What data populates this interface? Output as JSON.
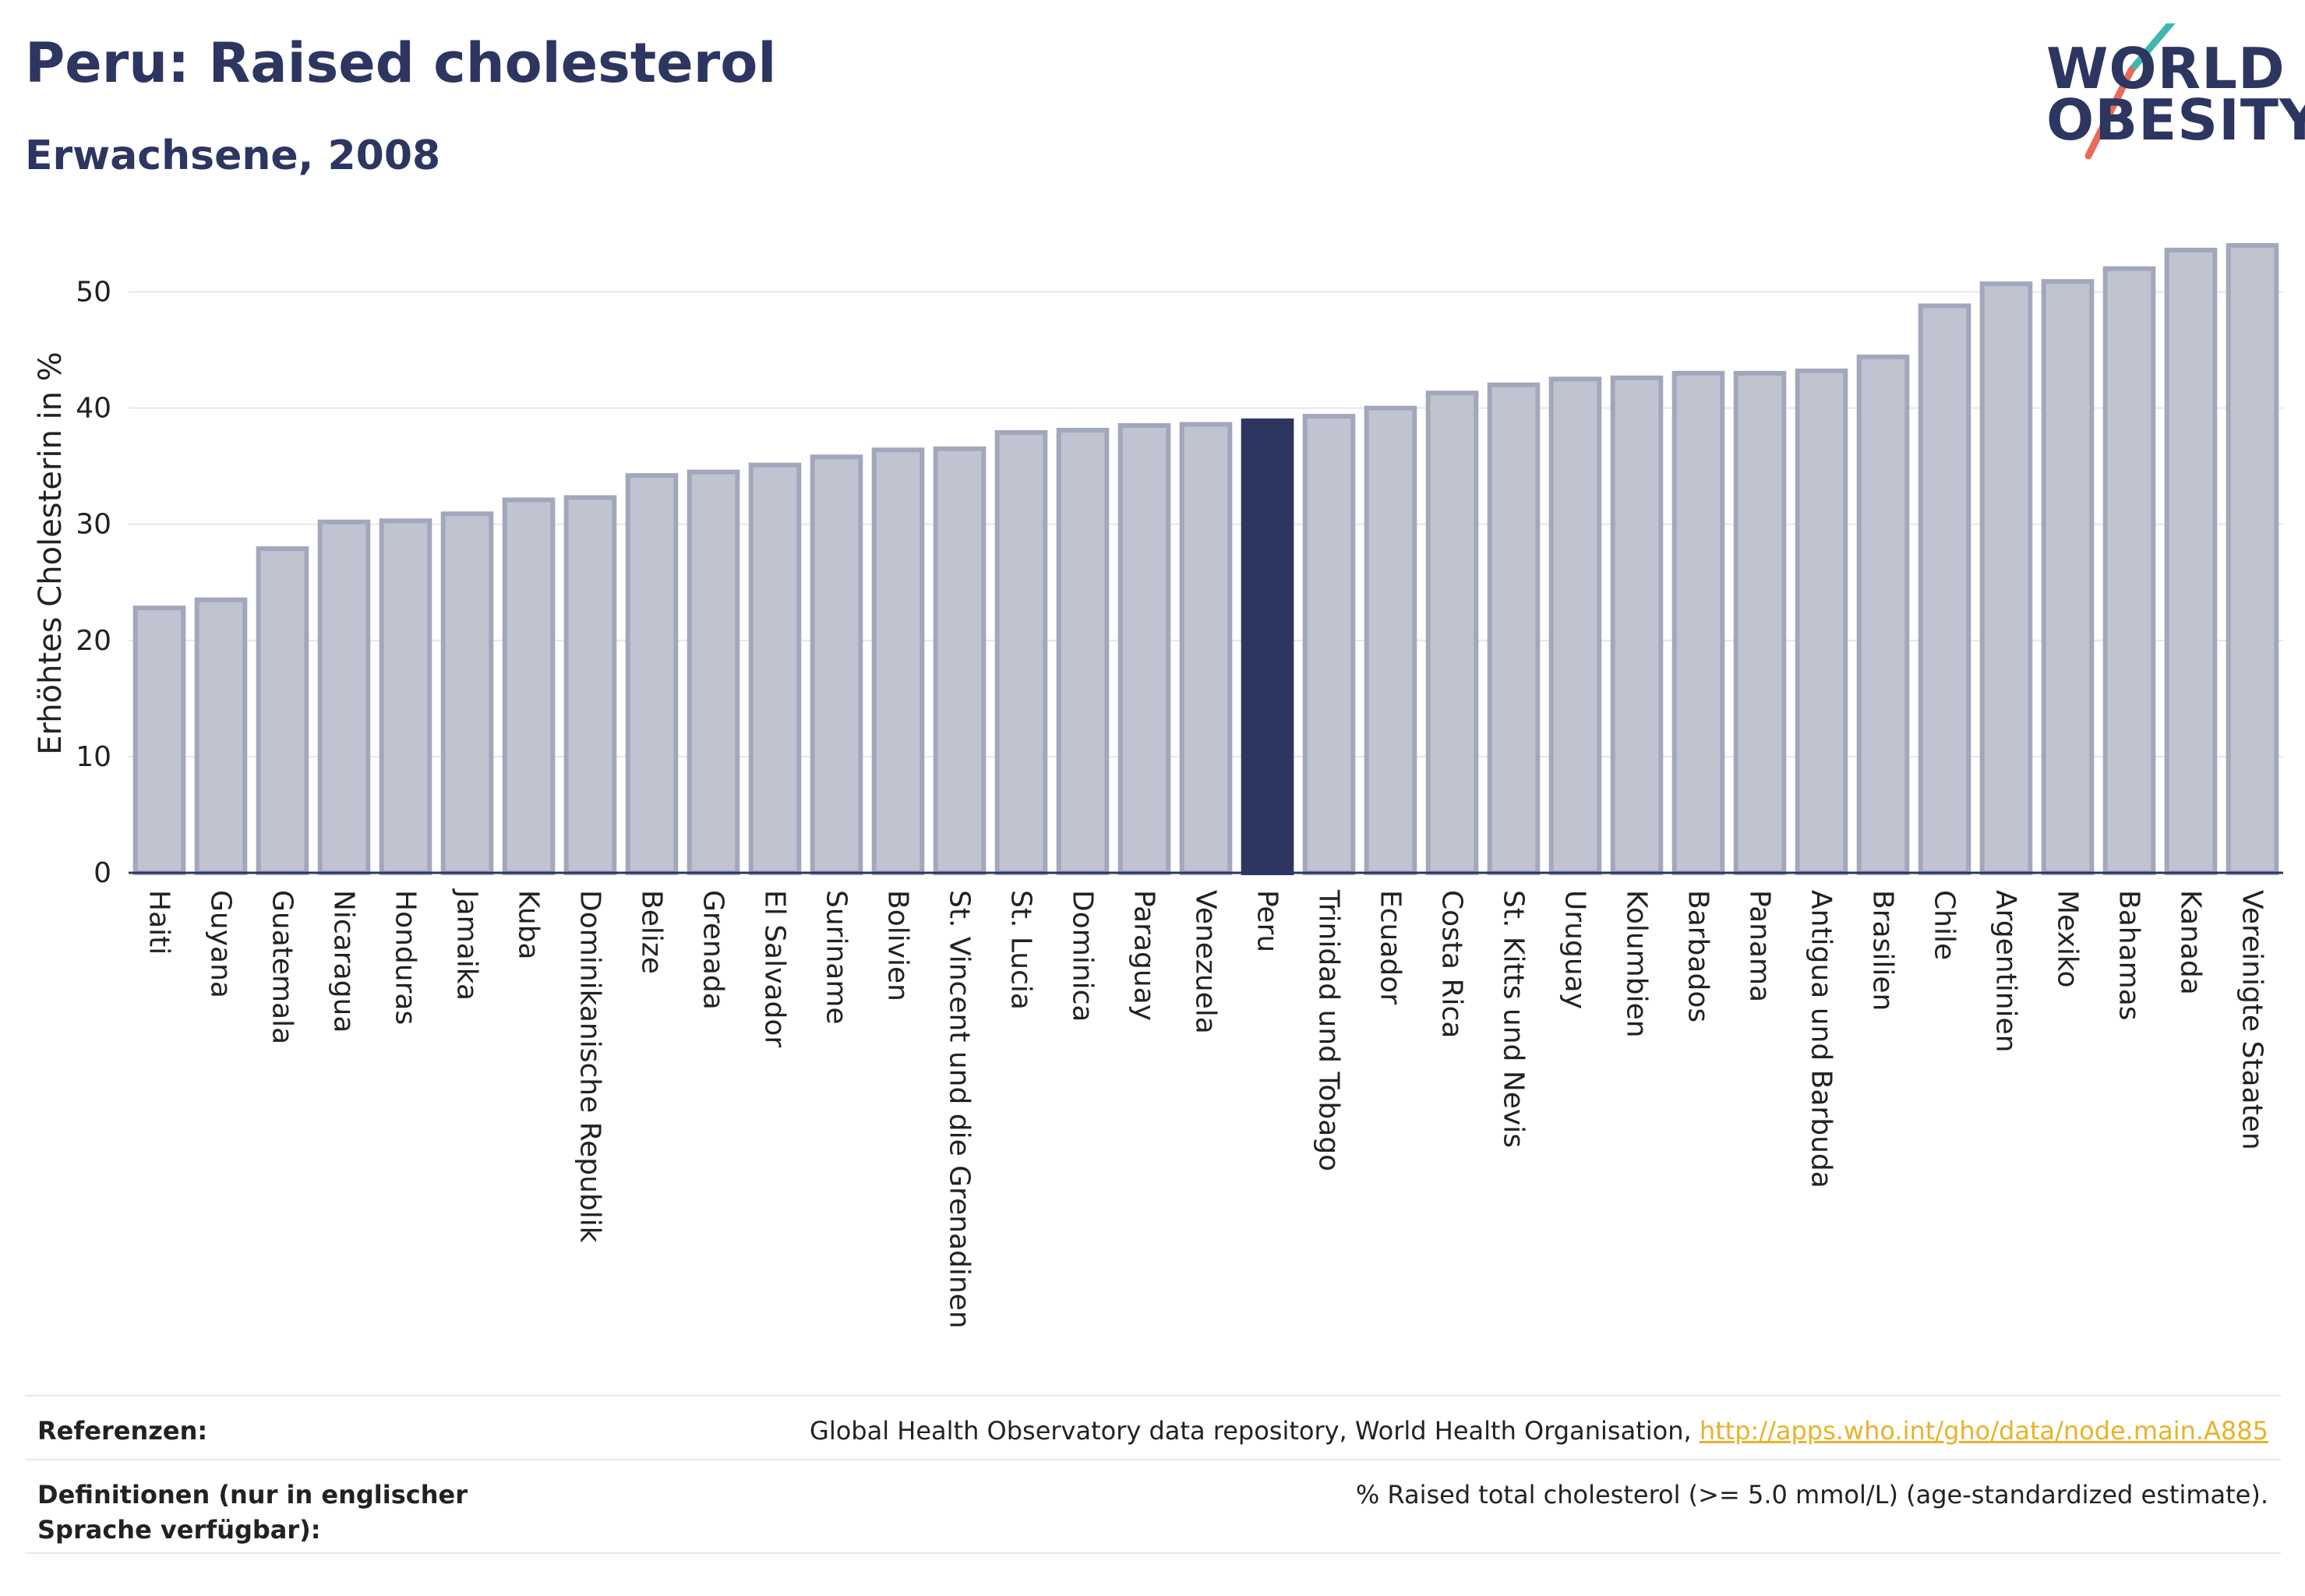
{
  "header": {
    "title": "Peru: Raised cholesterol",
    "subtitle": "Erwachsene, 2008"
  },
  "logo": {
    "line1": "WORLD",
    "line2": "OBESITY",
    "colors": {
      "text": "#2d3561",
      "slash_top": "#3fb7b0",
      "slash_bottom": "#e86a5a"
    }
  },
  "chart_data": {
    "type": "bar",
    "title": "Peru: Raised cholesterol",
    "subtitle": "Erwachsene, 2008",
    "xlabel": "",
    "ylabel": "Erhöhtes Cholesterin in %",
    "ylim": [
      0,
      55
    ],
    "yticks": [
      0,
      10,
      20,
      30,
      40,
      50
    ],
    "grid": true,
    "highlight": "Peru",
    "colors": {
      "bar": "#c0c3d0",
      "bar_border": "#a3a7bc",
      "highlight": "#2d3561",
      "grid": "#e6e6ec",
      "axis": "#2d3561"
    },
    "categories": [
      "Haiti",
      "Guyana",
      "Guatemala",
      "Nicaragua",
      "Honduras",
      "Jamaika",
      "Kuba",
      "Dominikanische Republik",
      "Belize",
      "Grenada",
      "El Salvador",
      "Suriname",
      "Bolivien",
      "St. Vincent und die Grenadinen",
      "St. Lucia",
      "Dominica",
      "Paraguay",
      "Venezuela",
      "Peru",
      "Trinidad und Tobago",
      "Ecuador",
      "Costa Rica",
      "St. Kitts und Nevis",
      "Uruguay",
      "Kolumbien",
      "Barbados",
      "Panama",
      "Antigua und Barbuda",
      "Brasilien",
      "Chile",
      "Argentinien",
      "Mexiko",
      "Bahamas",
      "Kanada",
      "Vereinigte Staaten"
    ],
    "values": [
      22.8,
      23.5,
      27.9,
      30.2,
      30.3,
      30.9,
      32.1,
      32.3,
      34.2,
      34.5,
      35.1,
      35.8,
      36.4,
      36.5,
      37.9,
      38.1,
      38.5,
      38.6,
      38.9,
      39.3,
      40.0,
      41.3,
      42.0,
      42.5,
      42.6,
      43.0,
      43.0,
      43.2,
      44.4,
      48.8,
      50.7,
      50.9,
      52.0,
      53.6,
      54.0
    ]
  },
  "footer": {
    "references_label": "Referenzen:",
    "references_text": "Global Health Observatory data repository, World Health Organisation, ",
    "references_link": "http://apps.who.int/gho/data/node.main.A885",
    "definitions_label": "Definitionen (nur in englischer Sprache verfügbar):",
    "definitions_text": "% Raised total cholesterol (>= 5.0 mmol/L) (age-standardized estimate)."
  }
}
